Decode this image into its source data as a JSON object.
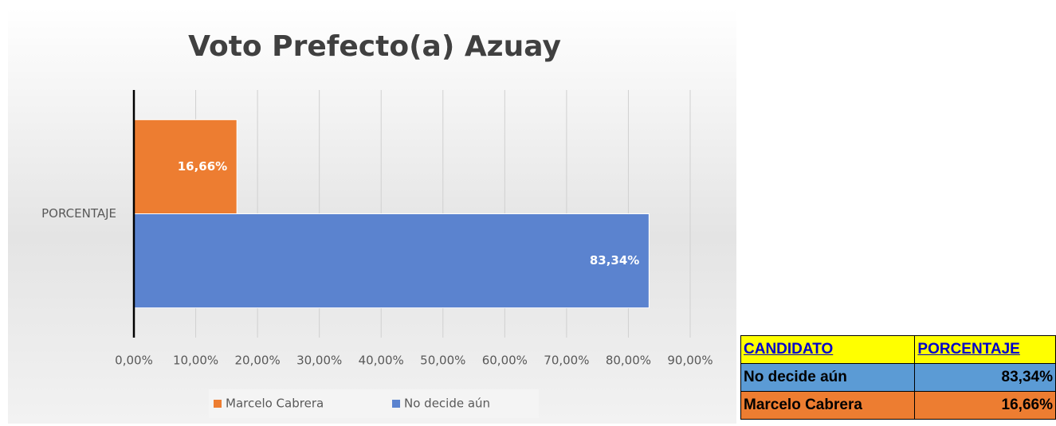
{
  "chart_data": {
    "type": "hbar",
    "title": "Voto Prefecto(a) Azuay",
    "categories": [
      "PORCENTAJE"
    ],
    "series": [
      {
        "name": "Marcelo Cabrera",
        "color": "#ed7d31",
        "values": [
          16.66
        ],
        "value_labels": [
          "16,66%"
        ]
      },
      {
        "name": "No decide aún",
        "color": "#5b83cf",
        "values": [
          83.34
        ],
        "value_labels": [
          "83,34%"
        ]
      }
    ],
    "xlim": [
      0,
      90
    ],
    "xticks": [
      {
        "value": 0,
        "label": "0,00%"
      },
      {
        "value": 10,
        "label": "10,00%"
      },
      {
        "value": 20,
        "label": "20,00%"
      },
      {
        "value": 30,
        "label": "30,00%"
      },
      {
        "value": 40,
        "label": "40,00%"
      },
      {
        "value": 50,
        "label": "50,00%"
      },
      {
        "value": 60,
        "label": "60,00%"
      },
      {
        "value": 70,
        "label": "70,00%"
      },
      {
        "value": 80,
        "label": "80,00%"
      },
      {
        "value": 90,
        "label": "90,00%"
      }
    ],
    "grid": true,
    "legend": "bottom"
  },
  "table": {
    "header": [
      "CANDIDATO",
      "PORCENTAJE"
    ],
    "rows": [
      [
        "No decide aún",
        "83,34%"
      ],
      [
        "Marcelo Cabrera",
        "16,66%"
      ]
    ]
  }
}
